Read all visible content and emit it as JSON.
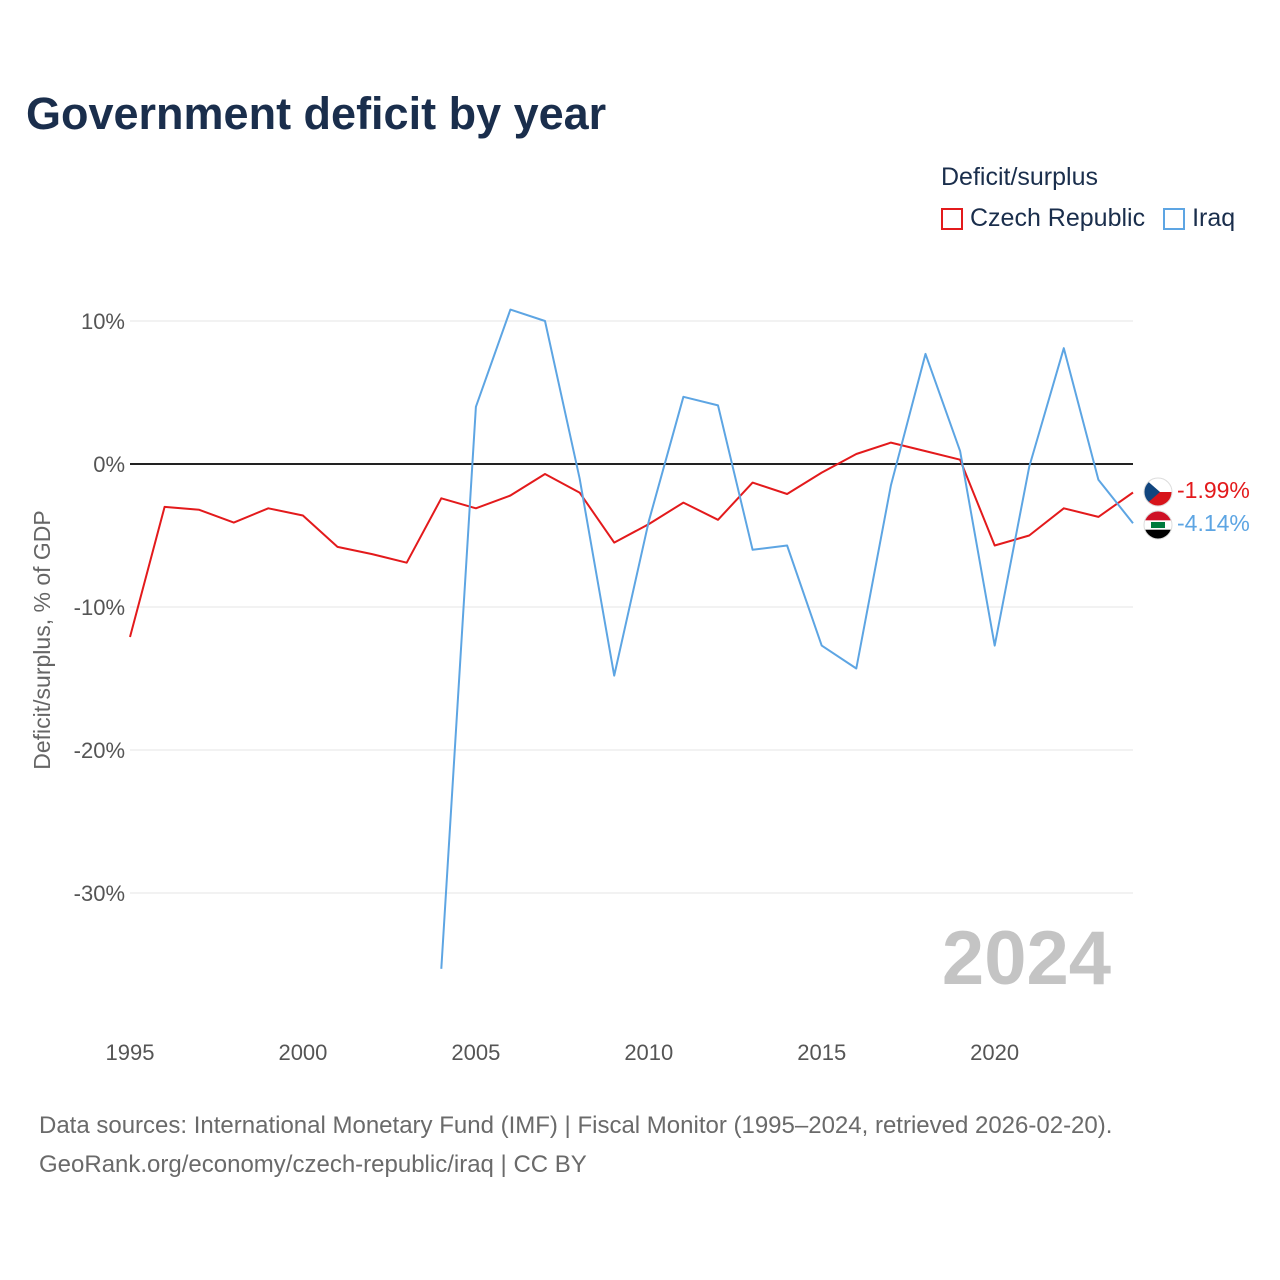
{
  "title": "Government deficit by year",
  "legend": {
    "title": "Deficit/surplus",
    "items": [
      {
        "label": "Czech Republic",
        "color": "#e31a1c"
      },
      {
        "label": "Iraq",
        "color": "#5da5e3"
      }
    ]
  },
  "footer": {
    "sources": "Data sources: International Monetary Fund (IMF) | Fiscal Monitor (1995–2024, retrieved 2026-02-20).",
    "credit": "GeoRank.org/economy/czech-republic/iraq | CC BY"
  },
  "chart_data": {
    "type": "line",
    "title": "Government deficit by year",
    "xlabel": "",
    "ylabel": "Deficit/surplus, % of GDP",
    "xlim": [
      1995,
      2024
    ],
    "ylim": [
      -35,
      10
    ],
    "x_ticks": [
      1995,
      2000,
      2005,
      2010,
      2015,
      2020
    ],
    "y_ticks": [
      10,
      0,
      -10,
      -20,
      -30
    ],
    "y_tick_labels": [
      "10%",
      "0%",
      "-10%",
      "-20%",
      "-30%"
    ],
    "zero_line": true,
    "grid": true,
    "year_watermark": "2024",
    "series": [
      {
        "name": "Czech Republic",
        "color": "#e31a1c",
        "x": [
          1995,
          1996,
          1997,
          1998,
          1999,
          2000,
          2001,
          2002,
          2003,
          2004,
          2005,
          2006,
          2007,
          2008,
          2009,
          2010,
          2011,
          2012,
          2013,
          2014,
          2015,
          2016,
          2017,
          2018,
          2019,
          2020,
          2021,
          2022,
          2023,
          2024
        ],
        "values": [
          -12.1,
          -3.0,
          -3.2,
          -4.1,
          -3.1,
          -3.6,
          -5.8,
          -6.3,
          -6.9,
          -2.4,
          -3.1,
          -2.2,
          -0.7,
          -2.0,
          -5.5,
          -4.2,
          -2.7,
          -3.9,
          -1.3,
          -2.1,
          -0.6,
          0.7,
          1.5,
          0.9,
          0.3,
          -5.7,
          -5.0,
          -3.1,
          -3.7,
          -1.99
        ],
        "end_label": "-1.99%"
      },
      {
        "name": "Iraq",
        "color": "#5da5e3",
        "x": [
          2004,
          2005,
          2006,
          2007,
          2008,
          2009,
          2010,
          2011,
          2012,
          2013,
          2014,
          2015,
          2016,
          2017,
          2018,
          2019,
          2020,
          2021,
          2022,
          2023,
          2024
        ],
        "values": [
          -35.3,
          4.0,
          10.8,
          10.0,
          -1.0,
          -14.8,
          -4.0,
          4.7,
          4.1,
          -6.0,
          -5.7,
          -12.7,
          -14.3,
          -1.5,
          7.7,
          0.9,
          -12.7,
          -0.2,
          8.1,
          -1.1,
          -4.14
        ],
        "end_label": "-4.14%"
      }
    ]
  }
}
